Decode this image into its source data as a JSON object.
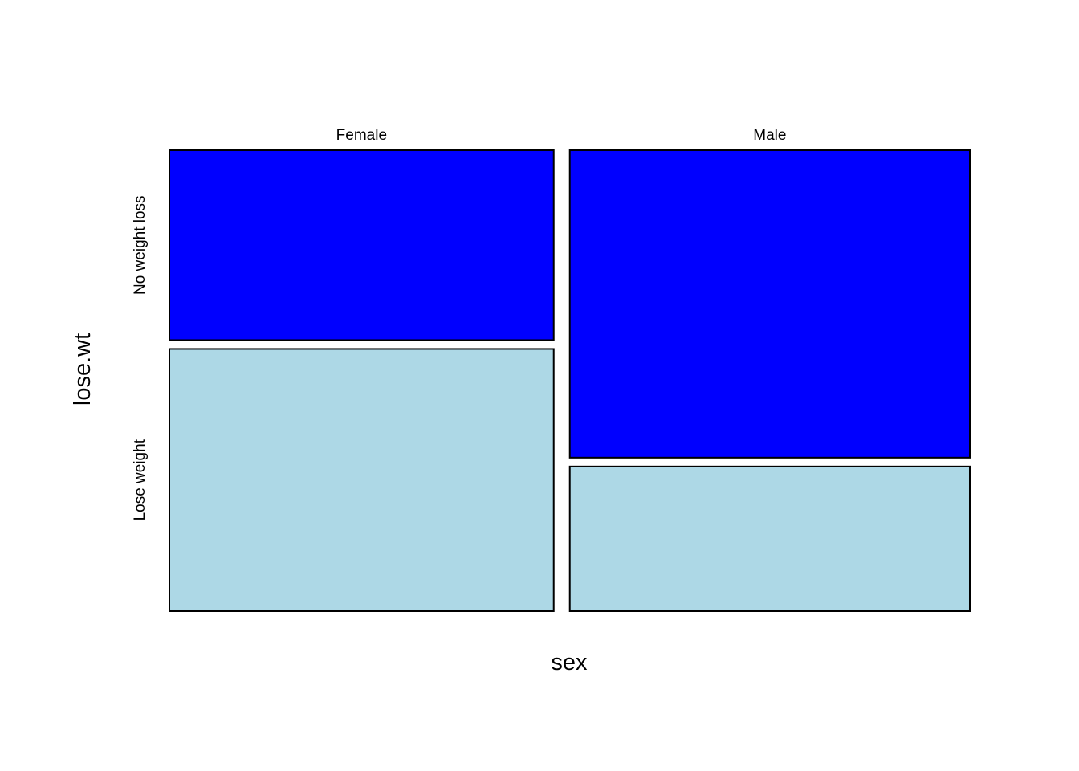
{
  "chart_data": {
    "type": "mosaic",
    "xlabel": "sex",
    "ylabel": "lose.wt",
    "x_categories": [
      "Female",
      "Male"
    ],
    "y_categories": [
      "No weight loss",
      "Lose weight"
    ],
    "column_share": [
      0.49,
      0.51
    ],
    "proportions": {
      "Female": {
        "No weight loss": 0.42,
        "Lose weight": 0.58
      },
      "Male": {
        "No weight loss": 0.68,
        "Lose weight": 0.32
      }
    },
    "colors": {
      "No weight loss": "#0000ff",
      "Lose weight": "#add8e6"
    },
    "grid": false,
    "legend": "none"
  }
}
